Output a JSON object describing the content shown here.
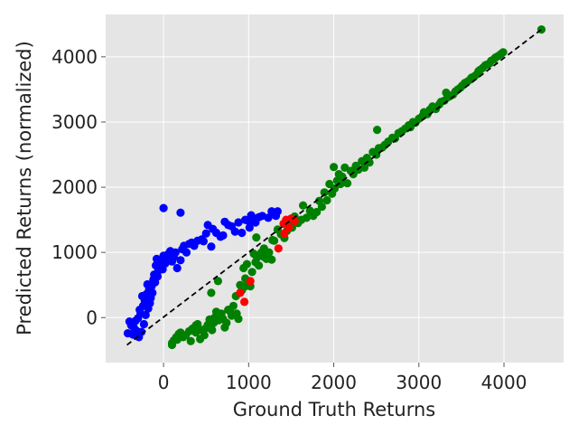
{
  "chart_data": {
    "type": "scatter",
    "xlabel": "Ground Truth Returns",
    "ylabel": "Predicted Returns (normalized)",
    "xlim": [
      -680,
      4700
    ],
    "ylim": [
      -690,
      4650
    ],
    "xticks": [
      0,
      1000,
      2000,
      3000,
      4000
    ],
    "yticks": [
      0,
      1000,
      2000,
      3000,
      4000
    ],
    "xtick_labels": [
      "0",
      "1000",
      "2000",
      "3000",
      "4000"
    ],
    "ytick_labels": [
      "0",
      "1000",
      "2000",
      "3000",
      "4000"
    ],
    "grid": true,
    "legend": "none",
    "colors": {
      "background": "#e5e5e5",
      "grid": "#ffffff"
    },
    "reference_line": {
      "style": "dashed",
      "color": "#000000",
      "points": [
        [
          -430,
          -420
        ],
        [
          4440,
          4420
        ]
      ]
    },
    "series": [
      {
        "color": "#0000ff",
        "points": [
          [
            -420,
            -240
          ],
          [
            -400,
            -60
          ],
          [
            -380,
            -120
          ],
          [
            -360,
            -260
          ],
          [
            -350,
            -150
          ],
          [
            -330,
            -50
          ],
          [
            -320,
            -200
          ],
          [
            -300,
            -10
          ],
          [
            -290,
            -300
          ],
          [
            -280,
            120
          ],
          [
            -270,
            60
          ],
          [
            -260,
            -220
          ],
          [
            -250,
            330
          ],
          [
            -240,
            180
          ],
          [
            -230,
            -100
          ],
          [
            -220,
            260
          ],
          [
            -210,
            40
          ],
          [
            -200,
            360
          ],
          [
            -190,
            510
          ],
          [
            -180,
            140
          ],
          [
            -170,
            430
          ],
          [
            -160,
            220
          ],
          [
            -150,
            300
          ],
          [
            -140,
            480
          ],
          [
            -130,
            380
          ],
          [
            -120,
            580
          ],
          [
            -110,
            660
          ],
          [
            -100,
            540
          ],
          [
            -90,
            800
          ],
          [
            -80,
            900
          ],
          [
            -70,
            630
          ],
          [
            -60,
            720
          ],
          [
            -50,
            760
          ],
          [
            -40,
            820
          ],
          [
            -30,
            780
          ],
          [
            -20,
            870
          ],
          [
            -10,
            740
          ],
          [
            0,
            950
          ],
          [
            20,
            830
          ],
          [
            40,
            900
          ],
          [
            60,
            980
          ],
          [
            80,
            1020
          ],
          [
            100,
            860
          ],
          [
            120,
            930
          ],
          [
            140,
            1000
          ],
          [
            160,
            760
          ],
          [
            200,
            880
          ],
          [
            220,
            1050
          ],
          [
            240,
            1100
          ],
          [
            270,
            1000
          ],
          [
            300,
            1130
          ],
          [
            330,
            1150
          ],
          [
            360,
            1100
          ],
          [
            400,
            1180
          ],
          [
            450,
            1200
          ],
          [
            470,
            1170
          ],
          [
            500,
            1290
          ],
          [
            520,
            1420
          ],
          [
            560,
            1090
          ],
          [
            580,
            1360
          ],
          [
            620,
            1300
          ],
          [
            670,
            1240
          ],
          [
            700,
            1260
          ],
          [
            720,
            1470
          ],
          [
            760,
            1420
          ],
          [
            800,
            1400
          ],
          [
            840,
            1320
          ],
          [
            880,
            1460
          ],
          [
            920,
            1300
          ],
          [
            960,
            1500
          ],
          [
            1000,
            1480
          ],
          [
            1010,
            1380
          ],
          [
            1030,
            1570
          ],
          [
            1060,
            1520
          ],
          [
            1080,
            1460
          ],
          [
            1120,
            1540
          ],
          [
            1160,
            1560
          ],
          [
            1230,
            1530
          ],
          [
            1270,
            1630
          ],
          [
            1290,
            1580
          ],
          [
            1320,
            1560
          ],
          [
            1340,
            1630
          ],
          [
            0,
            1680
          ],
          [
            200,
            1610
          ]
        ]
      },
      {
        "color": "#008000",
        "points": [
          [
            100,
            -390
          ],
          [
            100,
            -420
          ],
          [
            120,
            -350
          ],
          [
            150,
            -300
          ],
          [
            160,
            -340
          ],
          [
            180,
            -250
          ],
          [
            200,
            -230
          ],
          [
            230,
            -300
          ],
          [
            260,
            -270
          ],
          [
            300,
            -210
          ],
          [
            320,
            -360
          ],
          [
            340,
            -170
          ],
          [
            380,
            -230
          ],
          [
            380,
            -120
          ],
          [
            400,
            -100
          ],
          [
            430,
            -330
          ],
          [
            450,
            -190
          ],
          [
            480,
            -270
          ],
          [
            500,
            -160
          ],
          [
            520,
            -110
          ],
          [
            540,
            -30
          ],
          [
            570,
            -190
          ],
          [
            590,
            -80
          ],
          [
            600,
            0
          ],
          [
            620,
            90
          ],
          [
            650,
            -40
          ],
          [
            680,
            60
          ],
          [
            700,
            -20
          ],
          [
            720,
            -150
          ],
          [
            740,
            -80
          ],
          [
            760,
            120
          ],
          [
            780,
            100
          ],
          [
            800,
            30
          ],
          [
            820,
            180
          ],
          [
            850,
            330
          ],
          [
            860,
            60
          ],
          [
            880,
            -20
          ],
          [
            900,
            500
          ],
          [
            920,
            420
          ],
          [
            940,
            760
          ],
          [
            960,
            600
          ],
          [
            980,
            820
          ],
          [
            1000,
            540
          ],
          [
            1020,
            480
          ],
          [
            1040,
            700
          ],
          [
            1060,
            980
          ],
          [
            1080,
            850
          ],
          [
            1090,
            1230
          ],
          [
            1100,
            920
          ],
          [
            1120,
            800
          ],
          [
            1150,
            1000
          ],
          [
            1180,
            930
          ],
          [
            1210,
            900
          ],
          [
            1240,
            1000
          ],
          [
            1270,
            890
          ],
          [
            1300,
            1180
          ],
          [
            1340,
            1350
          ],
          [
            1380,
            1280
          ],
          [
            1420,
            1220
          ],
          [
            1450,
            1330
          ],
          [
            1480,
            1400
          ],
          [
            1510,
            1380
          ],
          [
            1540,
            1550
          ],
          [
            1580,
            1450
          ],
          [
            1620,
            1500
          ],
          [
            1640,
            1720
          ],
          [
            1680,
            1530
          ],
          [
            1720,
            1640
          ],
          [
            1760,
            1560
          ],
          [
            1800,
            1620
          ],
          [
            1830,
            1790
          ],
          [
            1860,
            1700
          ],
          [
            1890,
            1920
          ],
          [
            1920,
            1800
          ],
          [
            1950,
            2050
          ],
          [
            1980,
            1900
          ],
          [
            2000,
            2310
          ],
          [
            2010,
            1980
          ],
          [
            2040,
            2100
          ],
          [
            2060,
            2200
          ],
          [
            2080,
            2050
          ],
          [
            2100,
            2160
          ],
          [
            2130,
            2300
          ],
          [
            2160,
            2060
          ],
          [
            2200,
            2250
          ],
          [
            2230,
            2200
          ],
          [
            2260,
            2330
          ],
          [
            2290,
            2270
          ],
          [
            2330,
            2400
          ],
          [
            2360,
            2300
          ],
          [
            2390,
            2450
          ],
          [
            2420,
            2380
          ],
          [
            2460,
            2540
          ],
          [
            2500,
            2500
          ],
          [
            2510,
            2880
          ],
          [
            2530,
            2600
          ],
          [
            2570,
            2610
          ],
          [
            2600,
            2650
          ],
          [
            2640,
            2700
          ],
          [
            2690,
            2760
          ],
          [
            2720,
            2750
          ],
          [
            2760,
            2830
          ],
          [
            2800,
            2860
          ],
          [
            2840,
            2900
          ],
          [
            2880,
            2950
          ],
          [
            2900,
            2920
          ],
          [
            2930,
            3000
          ],
          [
            2960,
            2990
          ],
          [
            3000,
            3050
          ],
          [
            3040,
            3090
          ],
          [
            3060,
            3150
          ],
          [
            3100,
            3120
          ],
          [
            3130,
            3190
          ],
          [
            3160,
            3240
          ],
          [
            3200,
            3200
          ],
          [
            3240,
            3270
          ],
          [
            3260,
            3310
          ],
          [
            3300,
            3330
          ],
          [
            3320,
            3450
          ],
          [
            3340,
            3380
          ],
          [
            3370,
            3400
          ],
          [
            3400,
            3420
          ],
          [
            3430,
            3470
          ],
          [
            3460,
            3500
          ],
          [
            3490,
            3530
          ],
          [
            3510,
            3560
          ],
          [
            3540,
            3600
          ],
          [
            3570,
            3620
          ],
          [
            3600,
            3650
          ],
          [
            3620,
            3680
          ],
          [
            3650,
            3700
          ],
          [
            3680,
            3730
          ],
          [
            3700,
            3780
          ],
          [
            3720,
            3800
          ],
          [
            3750,
            3830
          ],
          [
            3780,
            3870
          ],
          [
            3800,
            3880
          ],
          [
            3830,
            3900
          ],
          [
            3850,
            3940
          ],
          [
            3880,
            3960
          ],
          [
            3900,
            3990
          ],
          [
            3930,
            4010
          ],
          [
            3960,
            4040
          ],
          [
            3990,
            4070
          ],
          [
            4440,
            4420
          ],
          [
            200,
            -270
          ],
          [
            560,
            380
          ],
          [
            640,
            560
          ],
          [
            960,
            480
          ],
          [
            1180,
            1060
          ],
          [
            1280,
            1190
          ]
        ]
      },
      {
        "color": "#ff0000",
        "points": [
          [
            900,
            380
          ],
          [
            950,
            240
          ],
          [
            1020,
            560
          ],
          [
            1350,
            1060
          ],
          [
            1410,
            1440
          ],
          [
            1440,
            1500
          ],
          [
            1470,
            1380
          ],
          [
            1500,
            1520
          ],
          [
            1540,
            1480
          ],
          [
            1420,
            1290
          ]
        ]
      }
    ]
  }
}
